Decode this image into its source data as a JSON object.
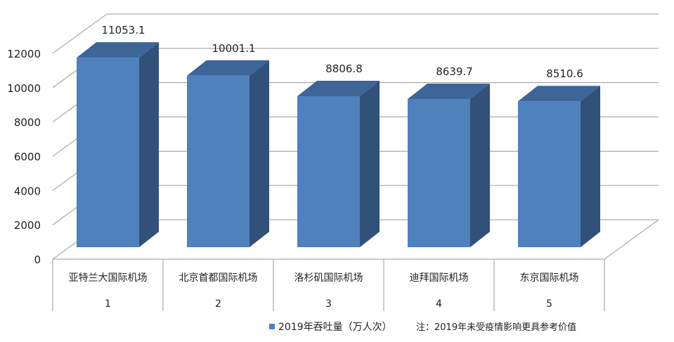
{
  "chart_data": {
    "type": "bar",
    "title": "",
    "categories": [
      "亚特兰大国际机场",
      "北京首都国际机场",
      "洛杉矶国际机场",
      "迪拜国际机场",
      "东京国际机场"
    ],
    "ranks": [
      "1",
      "2",
      "3",
      "4",
      "5"
    ],
    "series": [
      {
        "name": "2019年吞吐量（万人次）",
        "values": [
          11053.1,
          10001.1,
          8806.8,
          8639.7,
          8510.6
        ]
      }
    ],
    "value_labels": [
      "11053.1",
      "10001.1",
      "8806.8",
      "8639.7",
      "8510.6"
    ],
    "ylim": [
      0,
      12000
    ],
    "yticks": [
      "0",
      "2000",
      "4000",
      "6000",
      "8000",
      "10000",
      "12000"
    ],
    "xlabel": "",
    "ylabel": "",
    "grid": true,
    "legend_position": "bottom",
    "note": "注：2019年未受疫情影响更具参考价值",
    "colors": {
      "front": "#4F81BD",
      "side": "#31507A",
      "top": "#3D6598"
    }
  }
}
